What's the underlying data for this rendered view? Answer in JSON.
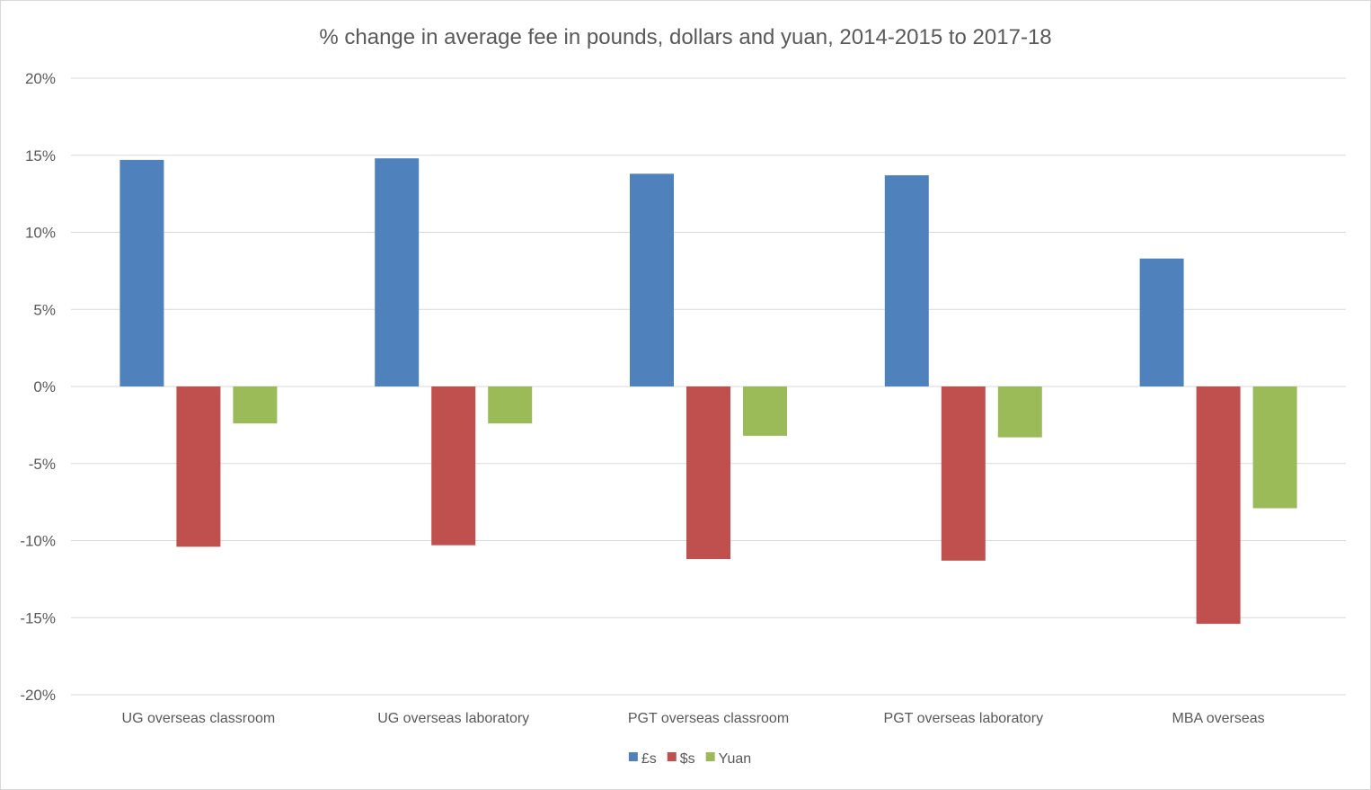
{
  "chart_data": {
    "type": "bar",
    "title": "% change in average fee in pounds, dollars and yuan, 2014-2015 to 2017-18",
    "xlabel": "",
    "ylabel": "",
    "ylim": [
      -20,
      20
    ],
    "ytick_values": [
      -20,
      -15,
      -10,
      -5,
      0,
      5,
      10,
      15,
      20
    ],
    "ytick_labels": [
      "-20%",
      "-15%",
      "-10%",
      "-5%",
      "0%",
      "5%",
      "10%",
      "15%",
      "20%"
    ],
    "grid": true,
    "legend_position": "bottom",
    "categories": [
      "UG overseas classroom",
      "UG overseas laboratory",
      "PGT overseas classroom",
      "PGT overseas laboratory",
      "MBA overseas"
    ],
    "series": [
      {
        "name": "£s",
        "color": "#4f81bd",
        "values": [
          14.7,
          14.8,
          13.8,
          13.7,
          8.3
        ]
      },
      {
        "name": "$s",
        "color": "#c0504d",
        "values": [
          -10.4,
          -10.3,
          -11.2,
          -11.3,
          -15.4
        ]
      },
      {
        "name": "Yuan",
        "color": "#9bbb59",
        "values": [
          -2.4,
          -2.4,
          -3.2,
          -3.3,
          -7.9
        ]
      }
    ]
  }
}
